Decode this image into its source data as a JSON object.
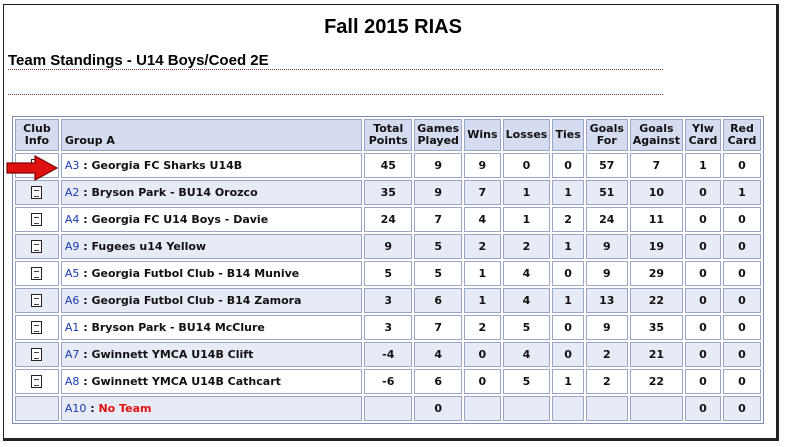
{
  "title": "Fall 2015 RIAS",
  "subtitle": "Team Standings - U14 Boys/Coed 2E",
  "headers": {
    "club_info": "Club Info",
    "group": "Group A",
    "total_points": "Total Points",
    "games_played": "Games Played",
    "wins": "Wins",
    "losses": "Losses",
    "ties": "Ties",
    "goals_for": "Goals For",
    "goals_against": "Goals Against",
    "ylw_card": "Ylw Card",
    "red_card": "Red Card"
  },
  "rows": [
    {
      "code": "A3",
      "team": " : Georgia FC Sharks U14B",
      "pts": "45",
      "gp": "9",
      "w": "9",
      "l": "0",
      "t": "0",
      "gf": "57",
      "ga": "7",
      "y": "1",
      "r": "0"
    },
    {
      "code": "A2",
      "team": " : Bryson Park - BU14 Orozco",
      "pts": "35",
      "gp": "9",
      "w": "7",
      "l": "1",
      "t": "1",
      "gf": "51",
      "ga": "10",
      "y": "0",
      "r": "1"
    },
    {
      "code": "A4",
      "team": " : Georgia FC U14 Boys - Davie",
      "pts": "24",
      "gp": "7",
      "w": "4",
      "l": "1",
      "t": "2",
      "gf": "24",
      "ga": "11",
      "y": "0",
      "r": "0"
    },
    {
      "code": "A9",
      "team": " : Fugees u14 Yellow",
      "pts": "9",
      "gp": "5",
      "w": "2",
      "l": "2",
      "t": "1",
      "gf": "9",
      "ga": "19",
      "y": "0",
      "r": "0"
    },
    {
      "code": "A5",
      "team": " : Georgia Futbol Club - B14 Munive",
      "pts": "5",
      "gp": "5",
      "w": "1",
      "l": "4",
      "t": "0",
      "gf": "9",
      "ga": "29",
      "y": "0",
      "r": "0"
    },
    {
      "code": "A6",
      "team": " : Georgia Futbol Club - B14 Zamora",
      "pts": "3",
      "gp": "6",
      "w": "1",
      "l": "4",
      "t": "1",
      "gf": "13",
      "ga": "22",
      "y": "0",
      "r": "0"
    },
    {
      "code": "A1",
      "team": " : Bryson Park - BU14 McClure",
      "pts": "3",
      "gp": "7",
      "w": "2",
      "l": "5",
      "t": "0",
      "gf": "9",
      "ga": "35",
      "y": "0",
      "r": "0"
    },
    {
      "code": "A7",
      "team": " : Gwinnett YMCA U14B Clift",
      "pts": "-4",
      "gp": "4",
      "w": "0",
      "l": "4",
      "t": "0",
      "gf": "2",
      "ga": "21",
      "y": "0",
      "r": "0"
    },
    {
      "code": "A8",
      "team": " : Gwinnett YMCA U14B Cathcart",
      "pts": "-6",
      "gp": "6",
      "w": "0",
      "l": "5",
      "t": "1",
      "gf": "2",
      "ga": "22",
      "y": "0",
      "r": "0"
    }
  ],
  "last_row": {
    "code": "A10",
    "team": "No Team",
    "gp": "0",
    "y": "0",
    "r": "0"
  },
  "icons": {
    "club_info": "document-icon",
    "highlight": "red-arrow-icon"
  },
  "colors": {
    "header_bg": "#d6dcef",
    "alt_row_bg": "#e7ebf6",
    "code_link": "#1a3bb0",
    "no_team": "#e01010",
    "arrow": "#e01010"
  }
}
